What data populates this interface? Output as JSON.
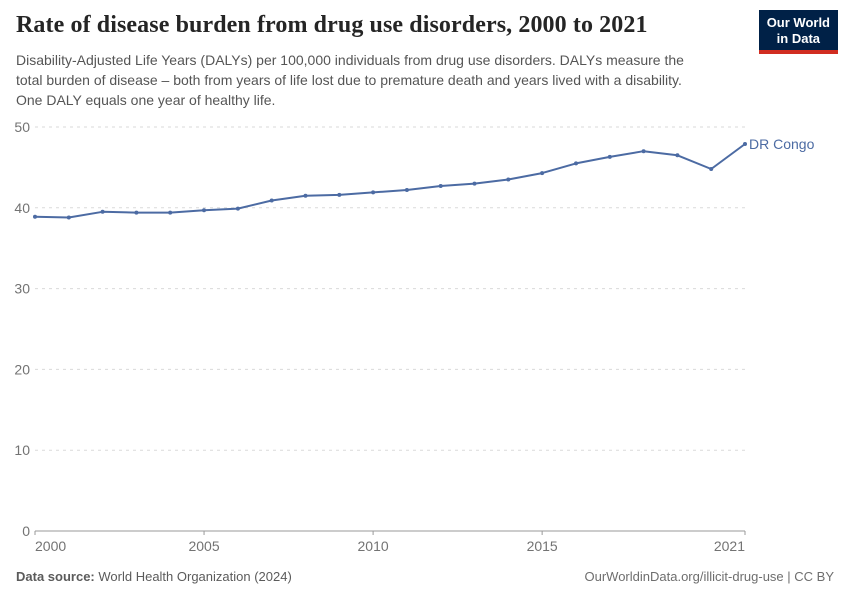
{
  "header": {
    "title": "Rate of disease burden from drug use disorders, 2000 to 2021",
    "subtitle_lines": [
      "Disability-Adjusted Life Years (DALYs) per 100,000 individuals from drug use disorders. DALYs measure the",
      "total burden of disease – both from years of life lost due to premature death and years lived with a disability.",
      "One DALY equals one year of healthy life."
    ],
    "logo": {
      "line1": "Our World",
      "line2": "in Data"
    }
  },
  "chart_data": {
    "type": "line",
    "title": "Rate of disease burden from drug use disorders, 2000 to 2021",
    "xlabel": "",
    "ylabel": "DALYs per 100,000 individuals",
    "xlim": [
      2000,
      2021
    ],
    "ylim": [
      0,
      50
    ],
    "xticks": [
      2000,
      2005,
      2010,
      2015,
      2021
    ],
    "yticks": [
      0,
      10,
      20,
      30,
      40,
      50
    ],
    "grid": "horizontal-dashed",
    "legend_position": "end-of-line",
    "x": [
      2000,
      2001,
      2002,
      2003,
      2004,
      2005,
      2006,
      2007,
      2008,
      2009,
      2010,
      2011,
      2012,
      2013,
      2014,
      2015,
      2016,
      2017,
      2018,
      2019,
      2020,
      2021
    ],
    "series": [
      {
        "name": "DR Congo",
        "values": [
          38.9,
          38.8,
          39.5,
          39.4,
          39.4,
          39.7,
          39.9,
          40.9,
          41.5,
          41.6,
          41.9,
          42.2,
          42.7,
          43.0,
          43.5,
          44.3,
          45.5,
          46.3,
          47.0,
          46.5,
          44.8,
          47.9
        ]
      }
    ]
  },
  "footer": {
    "source_label": "Data source:",
    "source_value": "World Health Organization (2024)",
    "right_text": "OurWorldinData.org/illicit-drug-use | CC BY"
  },
  "colors": {
    "line": "#4c6ba3",
    "entity_label": "#4c6ba3",
    "gridline": "#dadada",
    "axis": "#999999",
    "tick_label": "#737373",
    "logo_bg": "#002147",
    "logo_stripe": "#d12d21"
  }
}
